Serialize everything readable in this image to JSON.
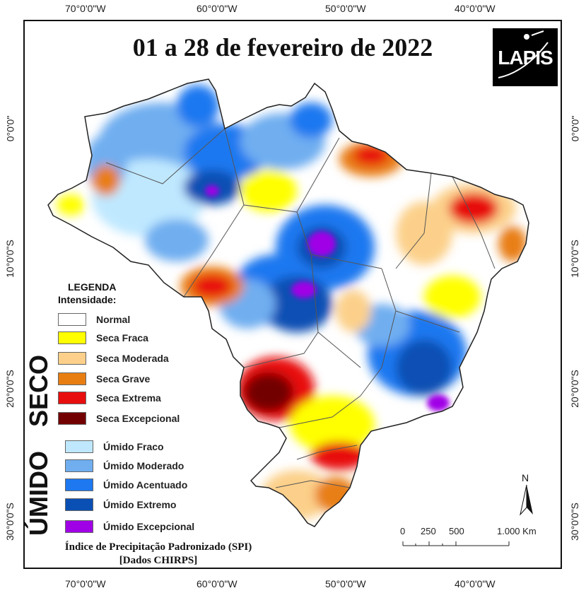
{
  "title": "01 a 28 de fevereiro de 2022",
  "logo": {
    "text": "LAPIS"
  },
  "ticks": {
    "top": [
      "70°0'0\"W",
      "60°0'0\"W",
      "50°0'0\"W",
      "40°0'0\"W"
    ],
    "bottom": [
      "70°0'0\"W",
      "60°0'0\"W",
      "50°0'0\"W",
      "40°0'0\"W"
    ],
    "left": [
      "0°0'0\"",
      "10°0'0\"S",
      "20°0'0\"S",
      "30°0'0\"S"
    ],
    "right": [
      "0°0'0\"",
      "10°0'0\"S",
      "20°0'0\"S",
      "30°0'0\"S"
    ]
  },
  "legend": {
    "title": "LEGENDA",
    "subtitle": "Intensidade:",
    "seco_label": "SECO",
    "umido_label": "ÚMIDO",
    "items": [
      {
        "label": "Normal",
        "color": "#ffffff"
      },
      {
        "label": "Seca Fraca",
        "color": "#ffff00"
      },
      {
        "label": "Seca Moderada",
        "color": "#fcd08a"
      },
      {
        "label": "Seca Grave",
        "color": "#e87e12"
      },
      {
        "label": "Seca Extrema",
        "color": "#e80e0e"
      },
      {
        "label": "Seca Excepcional",
        "color": "#730000"
      },
      {
        "label": "Úmido Fraco",
        "color": "#bfe8ff"
      },
      {
        "label": "Úmido Moderado",
        "color": "#70aef0"
      },
      {
        "label": "Úmido Acentuado",
        "color": "#1e78f0"
      },
      {
        "label": "Úmido Extremo",
        "color": "#0a4fb4"
      },
      {
        "label": "Úmido Excepcional",
        "color": "#a000e6"
      }
    ]
  },
  "footnote": {
    "line1": "Índice de Precipitação Padronizado (SPI)",
    "line2": "[Dados CHIRPS]"
  },
  "scale_bar": {
    "labels": [
      "0",
      "250",
      "500",
      "1.000 Km"
    ]
  },
  "north_arrow": {
    "label": "N"
  }
}
